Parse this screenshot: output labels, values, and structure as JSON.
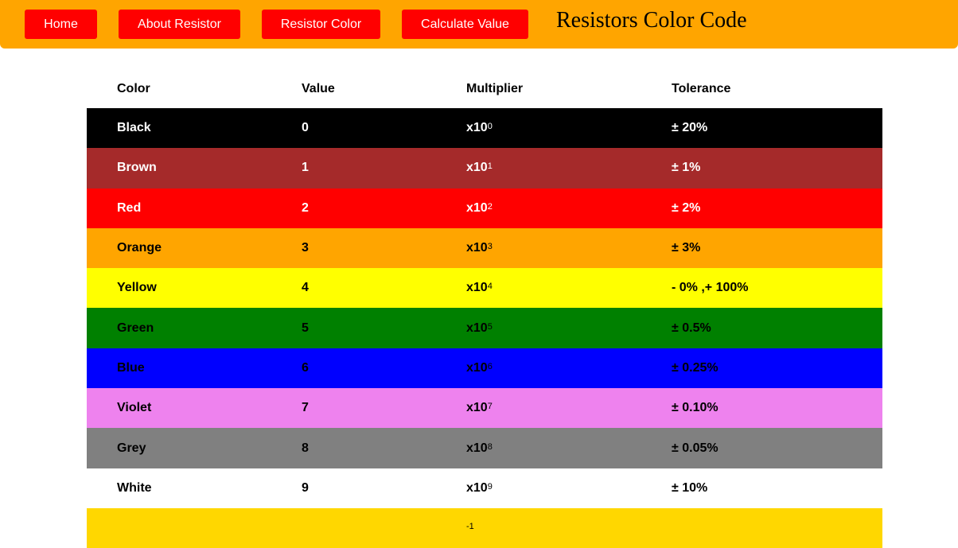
{
  "nav": {
    "home": "Home",
    "about": "About Resistor",
    "color": "Resistor Color",
    "calculate": "Calculate Value",
    "title": "Resistors Color Code"
  },
  "table": {
    "headers": {
      "color": "Color",
      "value": "Value",
      "multiplier": "Multiplier",
      "tolerance": "Tolerance"
    },
    "rows": [
      {
        "name": "Black",
        "value": "0",
        "mult_base": "x10",
        "mult_exp": "0",
        "tolerance": "± 20%",
        "bg": "#000000",
        "fg": "#ffffff"
      },
      {
        "name": "Brown",
        "value": "1",
        "mult_base": "x10",
        "mult_exp": "1",
        "tolerance": "± 1%",
        "bg": "#a52a2a",
        "fg": "#ffffff"
      },
      {
        "name": "Red",
        "value": "2",
        "mult_base": "x10",
        "mult_exp": "2",
        "tolerance": "± 2%",
        "bg": "#ff0000",
        "fg": "#ffffff"
      },
      {
        "name": "Orange",
        "value": "3",
        "mult_base": "x10",
        "mult_exp": "3",
        "tolerance": "± 3%",
        "bg": "#ffa500",
        "fg": "#000000"
      },
      {
        "name": "Yellow",
        "value": "4",
        "mult_base": "x10",
        "mult_exp": "4",
        "tolerance": "- 0% ,+ 100%",
        "bg": "#ffff00",
        "fg": "#000000"
      },
      {
        "name": "Green",
        "value": "5",
        "mult_base": "x10",
        "mult_exp": "5",
        "tolerance": "± 0.5%",
        "bg": "#008000",
        "fg": "#000000"
      },
      {
        "name": "Blue",
        "value": "6",
        "mult_base": "x10",
        "mult_exp": "6",
        "tolerance": "± 0.25%",
        "bg": "#0000ff",
        "fg": "#000000"
      },
      {
        "name": "Violet",
        "value": "7",
        "mult_base": "x10",
        "mult_exp": "7",
        "tolerance": "± 0.10%",
        "bg": "#ee82ee",
        "fg": "#000000"
      },
      {
        "name": "Grey",
        "value": "8",
        "mult_base": "x10",
        "mult_exp": "8",
        "tolerance": "± 0.05%",
        "bg": "#808080",
        "fg": "#000000"
      },
      {
        "name": "White",
        "value": "9",
        "mult_base": "x10",
        "mult_exp": "9",
        "tolerance": "± 10%",
        "bg": "#ffffff",
        "fg": "#000000"
      },
      {
        "name": "",
        "value": "",
        "mult_base": "",
        "mult_exp": "-1",
        "tolerance": "",
        "bg": "#ffd700",
        "fg": "#000000"
      }
    ]
  }
}
